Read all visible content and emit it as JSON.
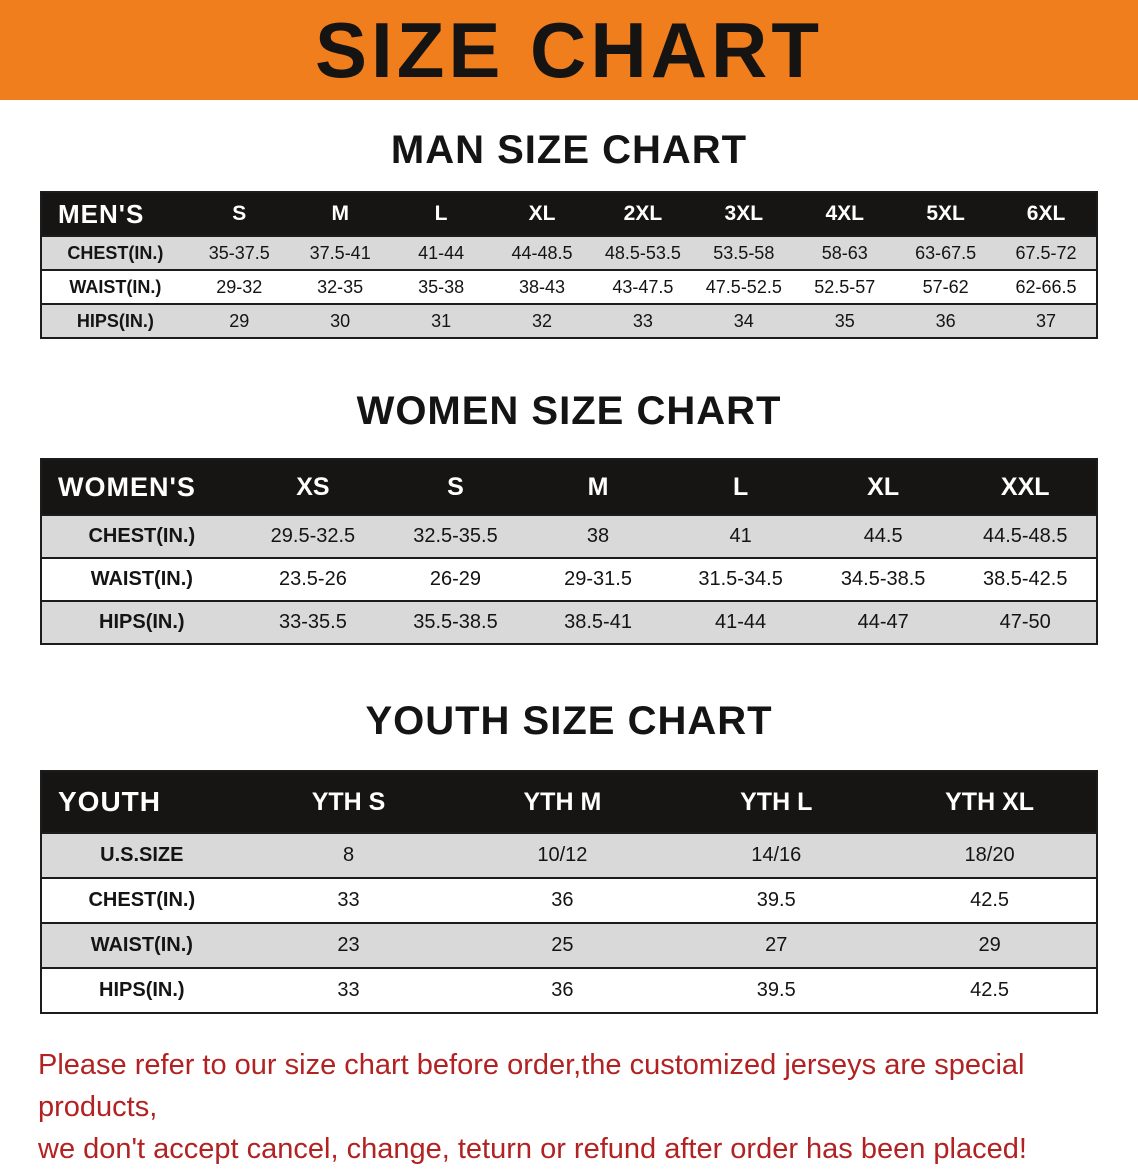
{
  "banner": {
    "title": "SIZE CHART",
    "bg_color": "#F07E1D",
    "text_color": "#161413"
  },
  "colors": {
    "table_header_bg": "#171514",
    "row_stripe_gray": "#D9D9D9",
    "footer_red": "#B22222"
  },
  "sections": [
    {
      "heading": "MAN SIZE CHART",
      "table": {
        "header": [
          "MEN'S",
          "S",
          "M",
          "L",
          "XL",
          "2XL",
          "3XL",
          "4XL",
          "5XL",
          "6XL"
        ],
        "rows": [
          {
            "label": "CHEST(IN.)",
            "values": [
              "35-37.5",
              "37.5-41",
              "41-44",
              "44-48.5",
              "48.5-53.5",
              "53.5-58",
              "58-63",
              "63-67.5",
              "67.5-72"
            ]
          },
          {
            "label": "WAIST(IN.)",
            "values": [
              "29-32",
              "32-35",
              "35-38",
              "38-43",
              "43-47.5",
              "47.5-52.5",
              "52.5-57",
              "57-62",
              "62-66.5"
            ]
          },
          {
            "label": "HIPS(IN.)",
            "values": [
              "29",
              "30",
              "31",
              "32",
              "33",
              "34",
              "35",
              "36",
              "37"
            ]
          }
        ]
      }
    },
    {
      "heading": "WOMEN SIZE CHART",
      "table": {
        "header": [
          "WOMEN'S",
          "XS",
          "S",
          "M",
          "L",
          "XL",
          "XXL"
        ],
        "rows": [
          {
            "label": "CHEST(IN.)",
            "values": [
              "29.5-32.5",
              "32.5-35.5",
              "38",
              "41",
              "44.5",
              "44.5-48.5"
            ]
          },
          {
            "label": "WAIST(IN.)",
            "values": [
              "23.5-26",
              "26-29",
              "29-31.5",
              "31.5-34.5",
              "34.5-38.5",
              "38.5-42.5"
            ]
          },
          {
            "label": "HIPS(IN.)",
            "values": [
              "33-35.5",
              "35.5-38.5",
              "38.5-41",
              "41-44",
              "44-47",
              "47-50"
            ]
          }
        ]
      }
    },
    {
      "heading": "YOUTH SIZE CHART",
      "table": {
        "header": [
          "YOUTH",
          "YTH S",
          "YTH M",
          "YTH L",
          "YTH XL"
        ],
        "rows": [
          {
            "label": "U.S.SIZE",
            "values": [
              "8",
              "10/12",
              "14/16",
              "18/20"
            ]
          },
          {
            "label": "CHEST(IN.)",
            "values": [
              "33",
              "36",
              "39.5",
              "42.5"
            ]
          },
          {
            "label": "WAIST(IN.)",
            "values": [
              "23",
              "25",
              "27",
              "29"
            ]
          },
          {
            "label": "HIPS(IN.)",
            "values": [
              "33",
              "36",
              "39.5",
              "42.5"
            ]
          }
        ]
      }
    }
  ],
  "footer": {
    "line1": "Please refer to our size chart before order,the customized jerseys are special products,",
    "line2": "we don't accept cancel, change, teturn or refund after order has been placed!"
  }
}
